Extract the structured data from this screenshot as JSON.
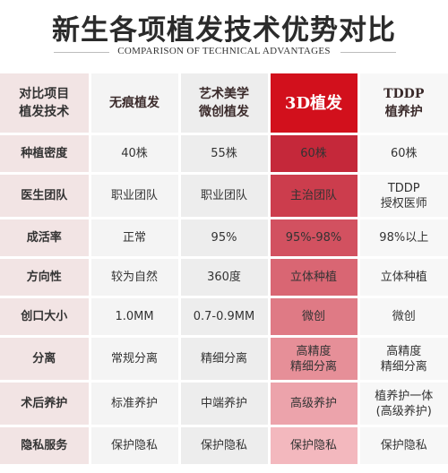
{
  "title": "新生各项植发技术优势对比",
  "subtitle": "COMPARISON OF TECHNICAL ADVANTAGES",
  "header": {
    "label": [
      "对比项目",
      "植发技术"
    ],
    "cols": [
      [
        "无痕植发"
      ],
      [
        "艺术美学",
        "微创植发"
      ],
      [
        "3D植发"
      ],
      [
        "TDDP",
        "植养护"
      ]
    ]
  },
  "rows": [
    {
      "label": "种植密度",
      "cells": [
        [
          "40株"
        ],
        [
          "55株"
        ],
        [
          "60株"
        ],
        [
          "60株"
        ]
      ]
    },
    {
      "label": "医生团队",
      "cells": [
        [
          "职业团队"
        ],
        [
          "职业团队"
        ],
        [
          "主治团队"
        ],
        [
          "TDDP",
          "授权医师"
        ]
      ]
    },
    {
      "label": "成活率",
      "cells": [
        [
          "正常"
        ],
        [
          "95%"
        ],
        [
          "95%-98%"
        ],
        [
          "98%以上"
        ]
      ]
    },
    {
      "label": "方向性",
      "cells": [
        [
          "较为自然"
        ],
        [
          "360度"
        ],
        [
          "立体种植"
        ],
        [
          "立体种植"
        ]
      ]
    },
    {
      "label": "创口大小",
      "cells": [
        [
          "1.0MM"
        ],
        [
          "0.7-0.9MM"
        ],
        [
          "微创"
        ],
        [
          "微创"
        ]
      ]
    },
    {
      "label": "分离",
      "cells": [
        [
          "常规分离"
        ],
        [
          "精细分离"
        ],
        [
          "高精度",
          "精细分离"
        ],
        [
          "高精度",
          "精细分离"
        ]
      ]
    },
    {
      "label": "术后养护",
      "cells": [
        [
          "标准养护"
        ],
        [
          "中端养护"
        ],
        [
          "高级养护"
        ],
        [
          "植养护一体",
          "(高级养护)"
        ]
      ]
    },
    {
      "label": "隐私服务",
      "cells": [
        [
          "保护隐私"
        ],
        [
          "保护隐私"
        ],
        [
          "保护隐私"
        ],
        [
          "保护隐私"
        ]
      ]
    }
  ],
  "colors": {
    "highlight": "#c5283a",
    "header_highlight": "#d2101c",
    "label_bg": "#f2e4e4",
    "label_text": "#8b2c2c"
  }
}
